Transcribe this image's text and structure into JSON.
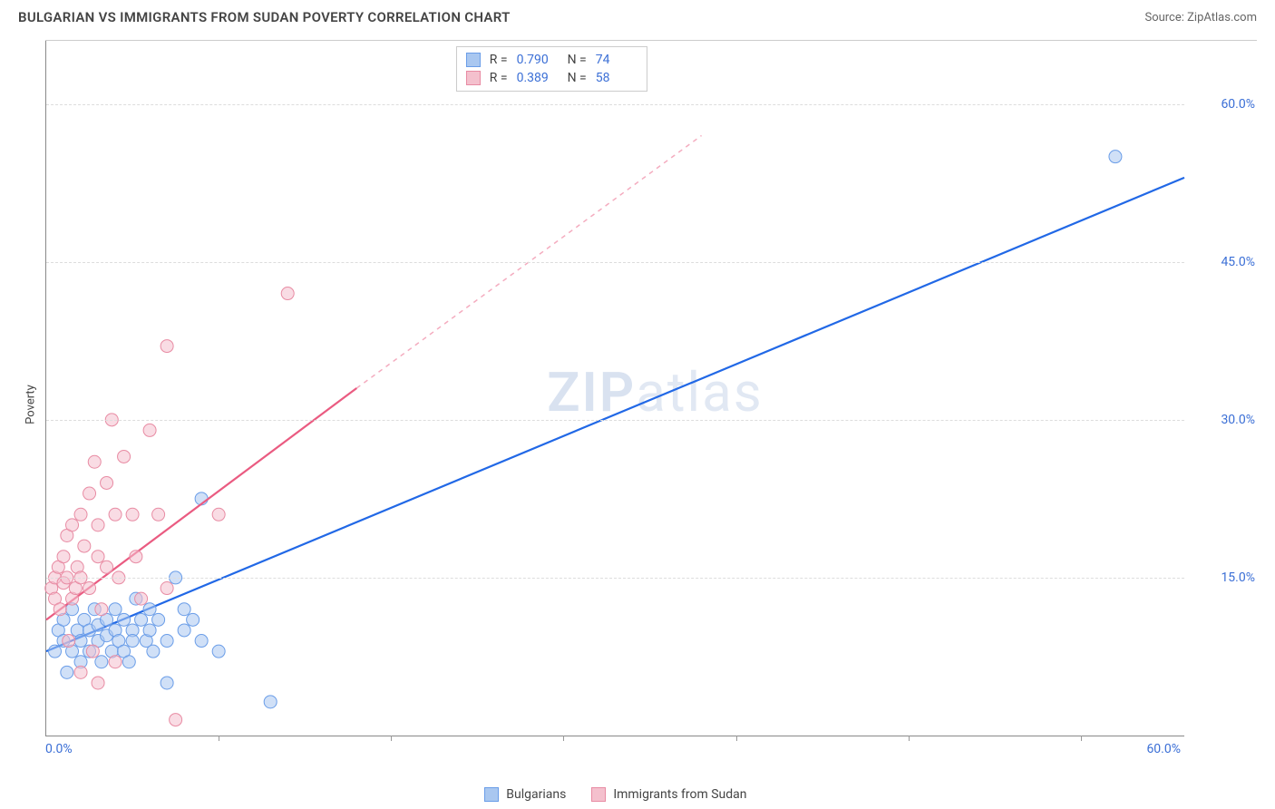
{
  "header": {
    "title": "BULGARIAN VS IMMIGRANTS FROM SUDAN POVERTY CORRELATION CHART",
    "source_prefix": "Source: ",
    "source_name": "ZipAtlas.com"
  },
  "ylabel": "Poverty",
  "watermark": {
    "bold": "ZIP",
    "light": "atlas"
  },
  "axes": {
    "xlim": [
      0,
      66
    ],
    "ylim": [
      0,
      66
    ],
    "xtick_positions": [
      0,
      10,
      20,
      30,
      40,
      50,
      60
    ],
    "xtick_labels": {
      "0": "0.0%",
      "60": "60.0%"
    },
    "ytick_positions": [
      15,
      30,
      45,
      60
    ],
    "ytick_labels": {
      "15": "15.0%",
      "30": "30.0%",
      "45": "45.0%",
      "60": "60.0%"
    },
    "grid_color": "#dddddd",
    "axis_color": "#888888"
  },
  "series": [
    {
      "id": "bulgarians",
      "label": "Bulgarians",
      "color_fill": "#a9c7f0",
      "color_stroke": "#6a9de8",
      "line_color": "#2168e6",
      "r_value": "0.790",
      "n_value": "74",
      "regression": {
        "x1": 0,
        "y1": 8,
        "x2": 66,
        "y2": 53
      },
      "marker_radius": 7,
      "points": [
        [
          0.5,
          8
        ],
        [
          0.7,
          10
        ],
        [
          1,
          11
        ],
        [
          1,
          9
        ],
        [
          1.2,
          6
        ],
        [
          1.5,
          12
        ],
        [
          1.5,
          8
        ],
        [
          1.8,
          10
        ],
        [
          2,
          9
        ],
        [
          2,
          7
        ],
        [
          2.2,
          11
        ],
        [
          2.5,
          10
        ],
        [
          2.5,
          8
        ],
        [
          2.8,
          12
        ],
        [
          3,
          9
        ],
        [
          3,
          10.5
        ],
        [
          3.2,
          7
        ],
        [
          3.5,
          11
        ],
        [
          3.5,
          9.5
        ],
        [
          3.8,
          8
        ],
        [
          4,
          10
        ],
        [
          4,
          12
        ],
        [
          4.2,
          9
        ],
        [
          4.5,
          11
        ],
        [
          4.5,
          8
        ],
        [
          4.8,
          7
        ],
        [
          5,
          10
        ],
        [
          5,
          9
        ],
        [
          5.2,
          13
        ],
        [
          5.5,
          11
        ],
        [
          5.8,
          9
        ],
        [
          6,
          12
        ],
        [
          6,
          10
        ],
        [
          6.2,
          8
        ],
        [
          6.5,
          11
        ],
        [
          7,
          5
        ],
        [
          7,
          9
        ],
        [
          7.5,
          15
        ],
        [
          8,
          10
        ],
        [
          8,
          12
        ],
        [
          8.5,
          11
        ],
        [
          9,
          22.5
        ],
        [
          9,
          9
        ],
        [
          10,
          8
        ],
        [
          13,
          3.2
        ],
        [
          62,
          55
        ]
      ]
    },
    {
      "id": "sudan",
      "label": "Immigrants from Sudan",
      "color_fill": "#f4c0cd",
      "color_stroke": "#e88ba3",
      "line_color": "#ea5b81",
      "r_value": "0.389",
      "n_value": "58",
      "regression": {
        "x1": 0,
        "y1": 11,
        "x2": 18,
        "y2": 33
      },
      "regression_extend": {
        "x1": 18,
        "y1": 33,
        "x2": 38,
        "y2": 57
      },
      "marker_radius": 7,
      "points": [
        [
          0.3,
          14
        ],
        [
          0.5,
          15
        ],
        [
          0.5,
          13
        ],
        [
          0.7,
          16
        ],
        [
          0.8,
          12
        ],
        [
          1,
          14.5
        ],
        [
          1,
          17
        ],
        [
          1.2,
          15
        ],
        [
          1.2,
          19
        ],
        [
          1.5,
          13
        ],
        [
          1.5,
          20
        ],
        [
          1.7,
          14
        ],
        [
          1.8,
          16
        ],
        [
          2,
          21
        ],
        [
          2,
          15
        ],
        [
          2.2,
          18
        ],
        [
          2.5,
          23
        ],
        [
          2.5,
          14
        ],
        [
          2.8,
          26
        ],
        [
          3,
          17
        ],
        [
          3,
          20
        ],
        [
          3.2,
          12
        ],
        [
          3.5,
          24
        ],
        [
          3.5,
          16
        ],
        [
          3.8,
          30
        ],
        [
          4,
          21
        ],
        [
          4.2,
          15
        ],
        [
          4.5,
          26.5
        ],
        [
          5,
          21
        ],
        [
          5.2,
          17
        ],
        [
          5.5,
          13
        ],
        [
          6,
          29
        ],
        [
          6.5,
          21
        ],
        [
          7,
          14
        ],
        [
          7,
          37
        ],
        [
          7.5,
          1.5
        ],
        [
          10,
          21
        ],
        [
          14,
          42
        ],
        [
          2,
          6
        ],
        [
          3,
          5
        ],
        [
          4,
          7
        ],
        [
          1.3,
          9
        ],
        [
          2.7,
          8
        ]
      ]
    }
  ],
  "stats_box": {
    "r_label": "R =",
    "n_label": "N ="
  },
  "colors": {
    "value_text": "#3b6fd6",
    "label_text": "#444444",
    "background": "#ffffff"
  }
}
